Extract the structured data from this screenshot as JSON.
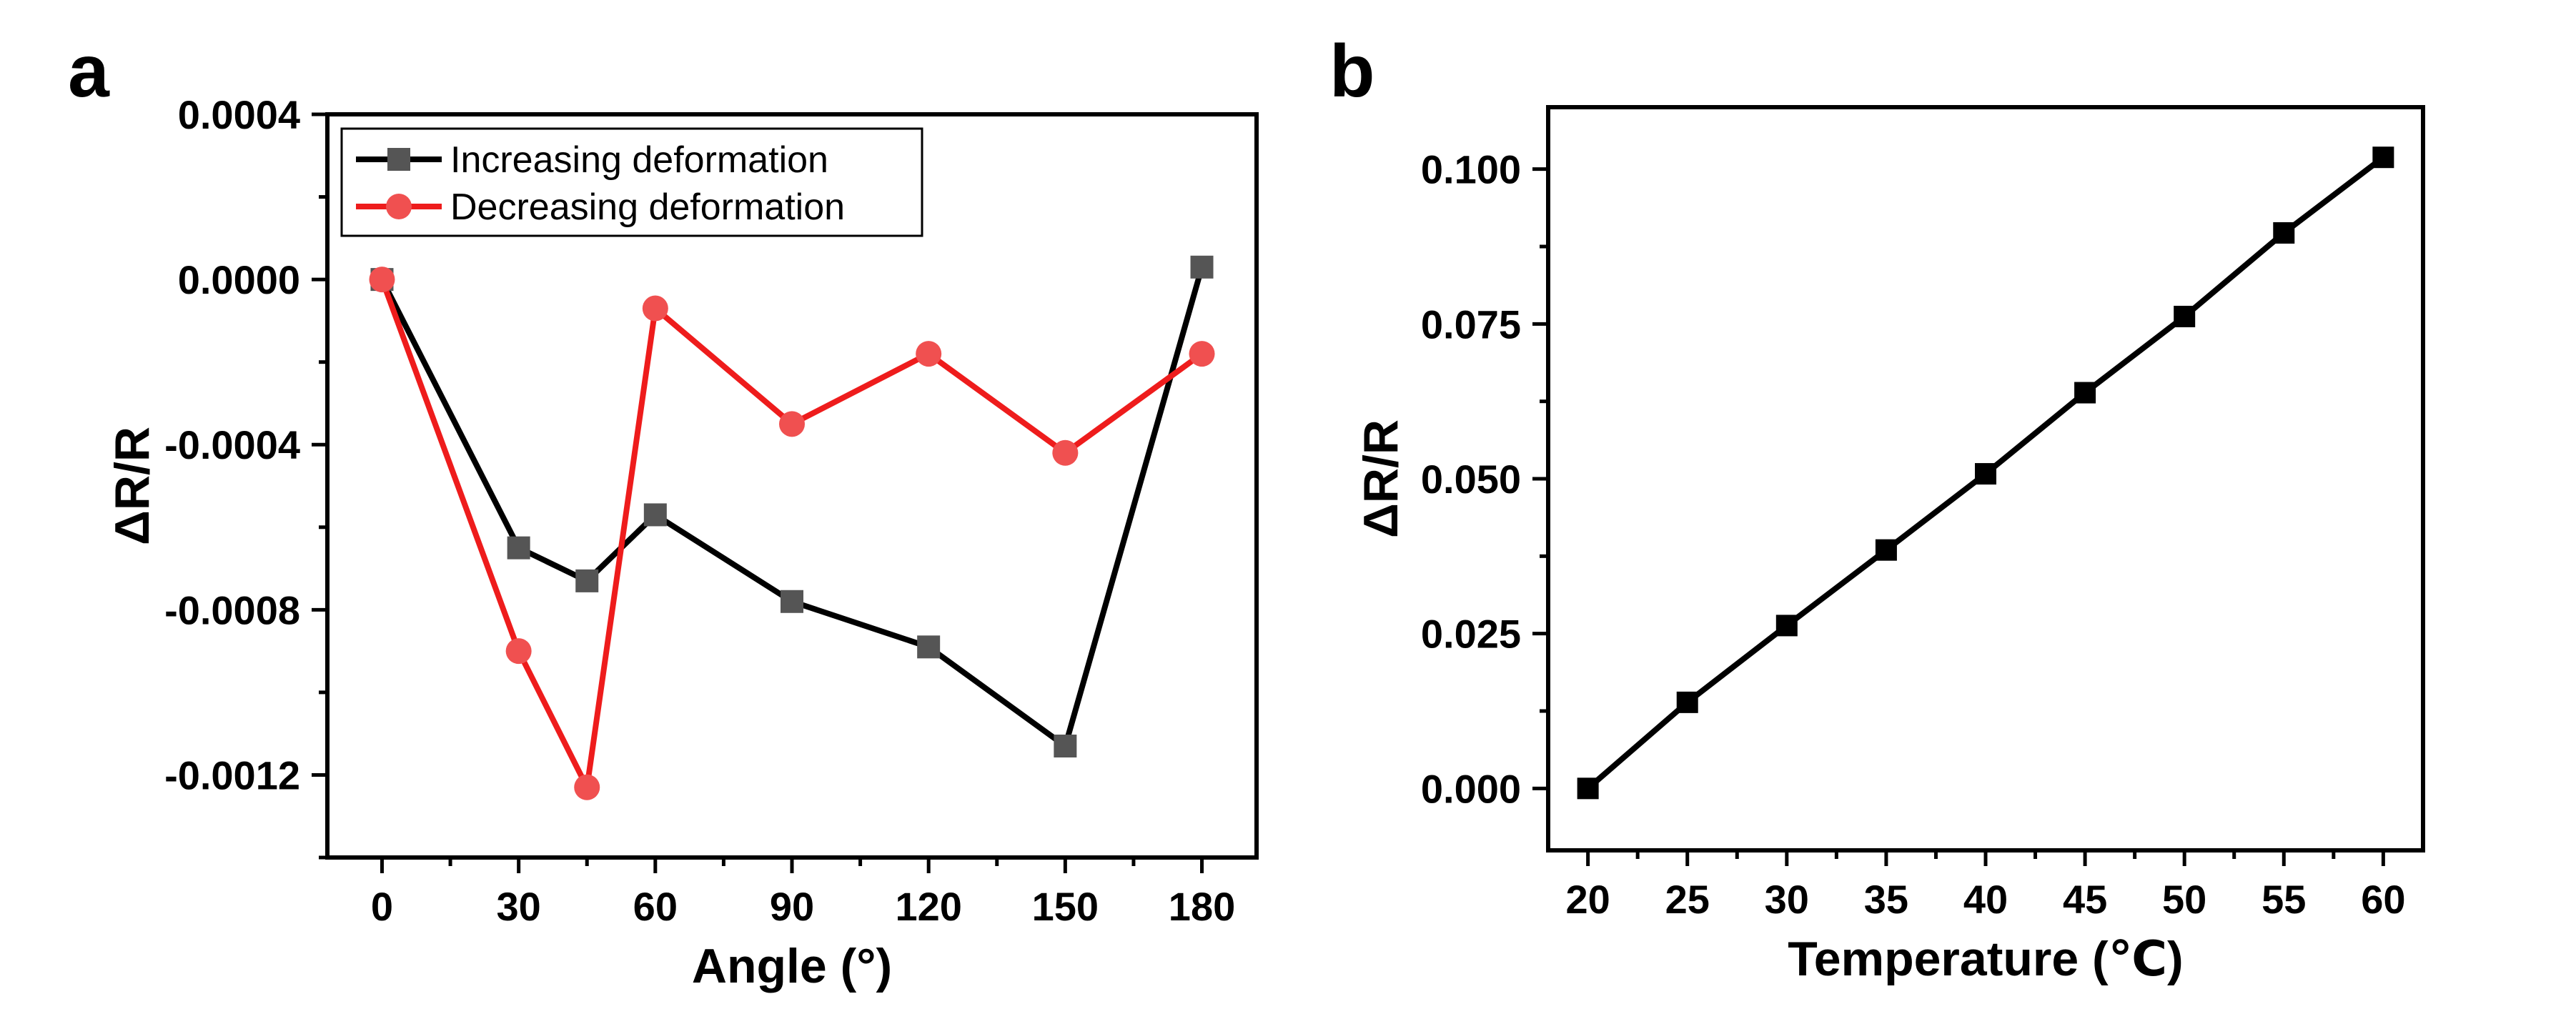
{
  "chart_data": [
    {
      "panel_label": "a",
      "type": "line",
      "xlabel": "Angle (°)",
      "ylabel": "ΔR/R",
      "xlim": [
        -12,
        192
      ],
      "ylim": [
        -0.0014,
        0.0004
      ],
      "x_ticks": [
        0,
        30,
        60,
        90,
        120,
        150,
        180
      ],
      "x_tick_labels": [
        "0",
        "30",
        "60",
        "90",
        "120",
        "150",
        "180"
      ],
      "x_minor_ticks": [
        15,
        45,
        75,
        105,
        135,
        165
      ],
      "y_ticks": [
        -0.0012,
        -0.0008,
        -0.0004,
        0.0,
        0.0004
      ],
      "y_tick_labels": [
        "-0.0012",
        "-0.0008",
        "-0.0004",
        "0.0000",
        "0.0004"
      ],
      "y_minor_ticks": [
        -0.0014,
        -0.001,
        -0.0006,
        -0.0002,
        0.0002
      ],
      "grid": false,
      "legend_position": "top-left",
      "series": [
        {
          "name": "Increasing deformation",
          "color": "#000000",
          "marker_color": "#555555",
          "marker": "square",
          "x": [
            0,
            30,
            45,
            60,
            90,
            120,
            150,
            180
          ],
          "y": [
            0.0,
            -0.00065,
            -0.00073,
            -0.00057,
            -0.00078,
            -0.00089,
            -0.00113,
            3e-05
          ]
        },
        {
          "name": "Decreasing deformation",
          "color": "#ee1c1c",
          "marker_color": "#f05050",
          "marker": "circle",
          "x": [
            0,
            30,
            45,
            60,
            90,
            120,
            150,
            180
          ],
          "y": [
            0.0,
            -0.0009,
            -0.00123,
            -7e-05,
            -0.00035,
            -0.00018,
            -0.00042,
            -0.00018
          ]
        }
      ]
    },
    {
      "panel_label": "b",
      "type": "line",
      "xlabel": "Temperature (℃)",
      "ylabel": "ΔR/R",
      "xlim": [
        18,
        62
      ],
      "ylim": [
        -0.01,
        0.11
      ],
      "x_ticks": [
        20,
        25,
        30,
        35,
        40,
        45,
        50,
        55,
        60
      ],
      "x_tick_labels": [
        "20",
        "25",
        "30",
        "35",
        "40",
        "45",
        "50",
        "55",
        "60"
      ],
      "x_minor_ticks": [
        22.5,
        27.5,
        32.5,
        37.5,
        42.5,
        47.5,
        52.5,
        57.5
      ],
      "y_ticks": [
        0.0,
        0.025,
        0.05,
        0.075,
        0.1
      ],
      "y_tick_labels": [
        "0.000",
        "0.025",
        "0.050",
        "0.075",
        "0.100"
      ],
      "y_minor_ticks": [
        0.0125,
        0.0375,
        0.0625,
        0.0875
      ],
      "grid": false,
      "series": [
        {
          "color": "#000000",
          "marker_color": "#000000",
          "marker": "square",
          "x": [
            20,
            25,
            30,
            35,
            40,
            45,
            50,
            55,
            60
          ],
          "y": [
            0.0,
            0.0139,
            0.0263,
            0.0385,
            0.0508,
            0.0639,
            0.0762,
            0.0897,
            0.1019
          ]
        }
      ]
    }
  ]
}
